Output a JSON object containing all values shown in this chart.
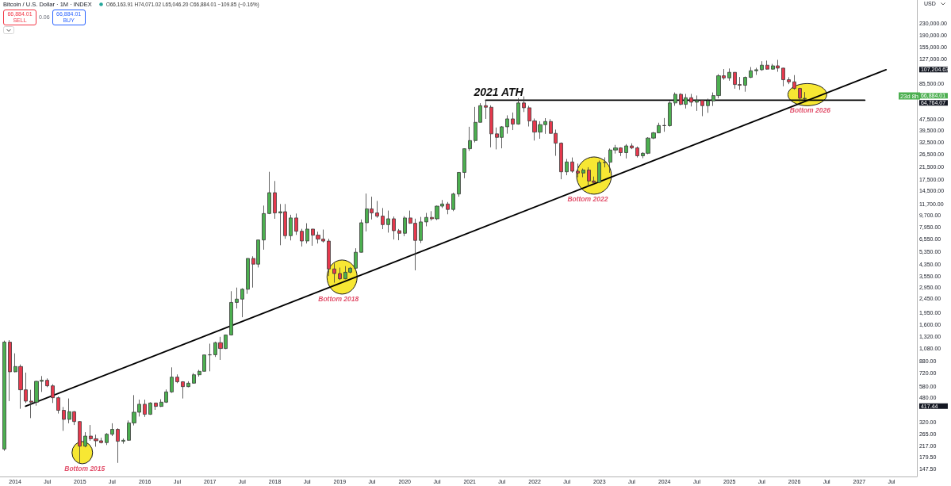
{
  "chart_data": {
    "type": "candlestick",
    "title": "Bitcoin / U.S. Dollar · 1M · INDEX",
    "subtitle": "O66,163.91 H74,071.02 L65,046.20 C66,884.01 −109.85 (−0.16%)",
    "ylabel": "USD",
    "x": [
      "2013-11",
      "2013-12",
      "2014-01",
      "2014-02",
      "2014-03",
      "2014-04",
      "2014-05",
      "2014-06",
      "2014-07",
      "2014-08",
      "2014-09",
      "2014-10",
      "2014-11",
      "2014-12",
      "2015-01",
      "2015-02",
      "2015-03",
      "2015-04",
      "2015-05",
      "2015-06",
      "2015-07",
      "2015-08",
      "2015-09",
      "2015-10",
      "2015-11",
      "2015-12",
      "2016-01",
      "2016-02",
      "2016-03",
      "2016-04",
      "2016-05",
      "2016-06",
      "2016-07",
      "2016-08",
      "2016-09",
      "2016-10",
      "2016-11",
      "2016-12",
      "2017-01",
      "2017-02",
      "2017-03",
      "2017-04",
      "2017-05",
      "2017-06",
      "2017-07",
      "2017-08",
      "2017-09",
      "2017-10",
      "2017-11",
      "2017-12",
      "2018-01",
      "2018-02",
      "2018-03",
      "2018-04",
      "2018-05",
      "2018-06",
      "2018-07",
      "2018-08",
      "2018-09",
      "2018-10",
      "2018-11",
      "2018-12",
      "2019-01",
      "2019-02",
      "2019-03",
      "2019-04",
      "2019-05",
      "2019-06",
      "2019-07",
      "2019-08",
      "2019-09",
      "2019-10",
      "2019-11",
      "2019-12",
      "2020-01",
      "2020-02",
      "2020-03",
      "2020-04",
      "2020-05",
      "2020-06",
      "2020-07",
      "2020-08",
      "2020-09",
      "2020-10",
      "2020-11",
      "2020-12",
      "2021-01",
      "2021-02",
      "2021-03",
      "2021-04",
      "2021-05",
      "2021-06",
      "2021-07",
      "2021-08",
      "2021-09",
      "2021-10",
      "2021-11",
      "2021-12",
      "2022-01",
      "2022-02",
      "2022-03",
      "2022-04",
      "2022-05",
      "2022-06",
      "2022-07",
      "2022-08",
      "2022-09",
      "2022-10",
      "2022-11",
      "2022-12",
      "2023-01",
      "2023-02",
      "2023-03",
      "2023-04",
      "2023-05",
      "2023-06",
      "2023-07",
      "2023-08",
      "2023-09",
      "2023-10",
      "2023-11",
      "2023-12",
      "2024-01",
      "2024-02",
      "2024-03",
      "2024-04",
      "2024-05",
      "2024-06",
      "2024-07",
      "2024-08",
      "2024-09",
      "2024-10",
      "2024-11",
      "2024-12",
      "2025-01",
      "2025-02",
      "2025-03",
      "2025-04",
      "2025-05",
      "2025-06",
      "2025-07",
      "2025-08",
      "2025-09",
      "2025-10",
      "2025-11",
      "2025-12",
      "2026-01",
      "2026-02",
      "2026-03"
    ],
    "ohlc": [
      [
        206,
        1230,
        200,
        1200
      ],
      [
        1200,
        1240,
        454,
        736
      ],
      [
        736,
        998,
        730,
        803
      ],
      [
        803,
        830,
        400,
        547
      ],
      [
        547,
        726,
        440,
        454
      ],
      [
        454,
        547,
        343,
        446
      ],
      [
        446,
        635,
        421,
        629
      ],
      [
        629,
        686,
        528,
        640
      ],
      [
        640,
        660,
        571,
        584
      ],
      [
        584,
        600,
        440,
        480
      ],
      [
        480,
        490,
        370,
        390
      ],
      [
        390,
        412,
        278,
        336
      ],
      [
        336,
        474,
        315,
        381
      ],
      [
        381,
        385,
        306,
        324
      ],
      [
        324,
        326,
        164,
        216
      ],
      [
        216,
        272,
        212,
        255
      ],
      [
        255,
        306,
        236,
        244
      ],
      [
        244,
        261,
        214,
        236
      ],
      [
        236,
        248,
        226,
        229
      ],
      [
        229,
        268,
        220,
        263
      ],
      [
        263,
        315,
        255,
        285
      ],
      [
        285,
        290,
        164,
        234
      ],
      [
        234,
        245,
        225,
        238
      ],
      [
        238,
        330,
        236,
        317
      ],
      [
        317,
        501,
        304,
        378
      ],
      [
        378,
        465,
        352,
        431
      ],
      [
        431,
        465,
        350,
        365
      ],
      [
        365,
        445,
        362,
        440
      ],
      [
        440,
        442,
        393,
        416
      ],
      [
        416,
        468,
        412,
        446
      ],
      [
        446,
        550,
        440,
        528
      ],
      [
        528,
        792,
        520,
        674
      ],
      [
        674,
        705,
        610,
        624
      ],
      [
        624,
        630,
        474,
        576
      ],
      [
        576,
        630,
        570,
        610
      ],
      [
        610,
        720,
        605,
        701
      ],
      [
        701,
        760,
        680,
        742
      ],
      [
        742,
        975,
        740,
        972
      ],
      [
        972,
        1170,
        742,
        975
      ],
      [
        975,
        1210,
        940,
        1190
      ],
      [
        1190,
        1310,
        895,
        1080
      ],
      [
        1080,
        1360,
        1070,
        1350
      ],
      [
        1350,
        2780,
        1340,
        2310
      ],
      [
        2310,
        2950,
        2090,
        2440
      ],
      [
        2440,
        2920,
        1810,
        2870
      ],
      [
        2870,
        4780,
        2660,
        4770
      ],
      [
        4770,
        4940,
        2950,
        4340
      ],
      [
        4340,
        6480,
        4110,
        6470
      ],
      [
        6470,
        11400,
        5510,
        10000
      ],
      [
        10000,
        19900,
        9900,
        14100
      ],
      [
        14100,
        17100,
        9170,
        10100
      ],
      [
        10100,
        11700,
        5930,
        10300
      ],
      [
        10300,
        11700,
        6600,
        6940
      ],
      [
        6940,
        9800,
        6420,
        9300
      ],
      [
        9300,
        10000,
        7030,
        7470
      ],
      [
        7470,
        7770,
        5810,
        6360
      ],
      [
        6360,
        8520,
        6100,
        7740
      ],
      [
        7740,
        7760,
        5880,
        7000
      ],
      [
        7000,
        7410,
        6100,
        6560
      ],
      [
        6560,
        7680,
        6200,
        6350
      ],
      [
        6350,
        6600,
        3570,
        4010
      ],
      [
        4010,
        4400,
        3200,
        3720
      ],
      [
        3720,
        4100,
        3340,
        3410
      ],
      [
        3410,
        4200,
        3380,
        3800
      ],
      [
        3800,
        4140,
        3730,
        4060
      ],
      [
        4060,
        5640,
        4030,
        5280
      ],
      [
        5280,
        9070,
        5260,
        8590
      ],
      [
        8590,
        13900,
        7450,
        10800
      ],
      [
        10800,
        13200,
        9070,
        10100
      ],
      [
        10100,
        12300,
        9320,
        9580
      ],
      [
        9580,
        10950,
        7730,
        8330
      ],
      [
        8330,
        10500,
        7300,
        9170
      ],
      [
        9170,
        9520,
        6520,
        7540
      ],
      [
        7540,
        7750,
        6440,
        7220
      ],
      [
        7220,
        9580,
        6880,
        9300
      ],
      [
        9300,
        10500,
        8450,
        8520
      ],
      [
        8520,
        9190,
        3920,
        6420
      ],
      [
        6420,
        9460,
        6150,
        8710
      ],
      [
        8710,
        10100,
        8100,
        9380
      ],
      [
        9380,
        10400,
        8900,
        9170
      ],
      [
        9170,
        11400,
        8980,
        11300
      ],
      [
        11300,
        12500,
        10950,
        11700
      ],
      [
        11700,
        12100,
        9880,
        10700
      ],
      [
        10700,
        14100,
        10400,
        13800
      ],
      [
        13800,
        19800,
        13200,
        19700
      ],
      [
        19700,
        29300,
        17900,
        29100
      ],
      [
        29100,
        41800,
        28100,
        33300
      ],
      [
        33300,
        58000,
        32300,
        45000
      ],
      [
        45000,
        61700,
        44950,
        59200
      ],
      [
        59200,
        64700,
        47600,
        57700
      ],
      [
        57700,
        59500,
        29800,
        37200
      ],
      [
        37200,
        41300,
        28800,
        35100
      ],
      [
        35100,
        42300,
        29300,
        41800
      ],
      [
        41800,
        50500,
        37300,
        47600
      ],
      [
        47600,
        52900,
        39600,
        43700
      ],
      [
        43700,
        67000,
        43300,
        61900
      ],
      [
        61900,
        69000,
        53300,
        57200
      ],
      [
        57200,
        59100,
        42000,
        46000
      ],
      [
        46000,
        47900,
        33300,
        38300
      ],
      [
        38300,
        45800,
        34300,
        43300
      ],
      [
        43300,
        48200,
        37200,
        45600
      ],
      [
        45600,
        47400,
        37300,
        37500
      ],
      [
        37500,
        39900,
        25900,
        31900
      ],
      [
        31900,
        32300,
        17600,
        19900
      ],
      [
        19900,
        24600,
        18800,
        23400
      ],
      [
        23400,
        25200,
        19600,
        20100
      ],
      [
        20100,
        22800,
        18200,
        19500
      ],
      [
        19500,
        21000,
        18200,
        20500
      ],
      [
        20500,
        21450,
        15500,
        17100
      ],
      [
        17100,
        18400,
        16300,
        16700
      ],
      [
        16700,
        23950,
        16500,
        23200
      ],
      [
        23200,
        25250,
        21400,
        23300
      ],
      [
        23300,
        29200,
        19600,
        28500
      ],
      [
        28500,
        31000,
        26900,
        29500
      ],
      [
        29500,
        29800,
        25800,
        27300
      ],
      [
        27300,
        31400,
        24800,
        30500
      ],
      [
        30500,
        31800,
        28900,
        29500
      ],
      [
        29500,
        30200,
        25200,
        25900
      ],
      [
        25900,
        27500,
        24900,
        27000
      ],
      [
        27000,
        35200,
        26600,
        34700
      ],
      [
        34700,
        38400,
        34100,
        37800
      ],
      [
        37800,
        44700,
        37600,
        42700
      ],
      [
        42700,
        48300,
        38500,
        42600
      ],
      [
        42600,
        63900,
        41900,
        61900
      ],
      [
        61900,
        73600,
        59100,
        71400
      ],
      [
        71400,
        72800,
        59600,
        60500
      ],
      [
        60500,
        71900,
        56500,
        67500
      ],
      [
        67500,
        71900,
        58400,
        62700
      ],
      [
        62700,
        70000,
        54300,
        64600
      ],
      [
        64600,
        65100,
        49800,
        59200
      ],
      [
        59200,
        66500,
        52600,
        64100
      ],
      [
        64100,
        73600,
        58900,
        69900
      ],
      [
        69900,
        99600,
        66800,
        96900
      ],
      [
        96900,
        108300,
        90800,
        93600
      ],
      [
        93600,
        109300,
        89300,
        102600
      ],
      [
        102600,
        102700,
        78300,
        83900
      ],
      [
        83900,
        95000,
        76900,
        82900
      ],
      [
        82900,
        95700,
        74500,
        94400
      ],
      [
        94400,
        111900,
        93400,
        105300
      ],
      [
        105300,
        110600,
        98300,
        107100
      ],
      [
        107100,
        123200,
        105300,
        115400
      ],
      [
        115400,
        124500,
        107300,
        108100
      ],
      [
        108100,
        117900,
        107300,
        114200
      ],
      [
        114200,
        126000,
        103500,
        110000
      ],
      [
        110000,
        110600,
        81400,
        90800
      ],
      [
        90800,
        94600,
        84400,
        87700
      ],
      [
        87700,
        98000,
        77000,
        78600
      ],
      [
        78600,
        79500,
        63000,
        67000
      ],
      [
        66163.91,
        74071.02,
        65046.2,
        66884.01
      ]
    ],
    "colors": [
      "#4caf50",
      "#e5394d",
      "#4caf50",
      "#e5394d",
      "#e5394d",
      "#e5394d",
      "#4caf50",
      "#4caf50",
      "#e5394d",
      "#e5394d",
      "#e5394d",
      "#e5394d",
      "#4caf50",
      "#e5394d",
      "#e5394d",
      "#4caf50",
      "#e5394d",
      "#e5394d",
      "#e5394d",
      "#4caf50",
      "#4caf50",
      "#e5394d",
      "#4caf50",
      "#4caf50",
      "#4caf50",
      "#4caf50",
      "#e5394d",
      "#4caf50",
      "#e5394d",
      "#4caf50",
      "#4caf50",
      "#4caf50",
      "#e5394d",
      "#e5394d",
      "#4caf50",
      "#4caf50",
      "#4caf50",
      "#4caf50",
      "#4caf50",
      "#4caf50",
      "#e5394d",
      "#4caf50",
      "#4caf50",
      "#4caf50",
      "#4caf50",
      "#4caf50",
      "#e5394d",
      "#4caf50",
      "#4caf50",
      "#4caf50",
      "#e5394d",
      "#4caf50",
      "#e5394d",
      "#4caf50",
      "#e5394d",
      "#e5394d",
      "#4caf50",
      "#e5394d",
      "#e5394d",
      "#e5394d",
      "#e5394d",
      "#e5394d",
      "#e5394d",
      "#4caf50",
      "#4caf50",
      "#4caf50",
      "#4caf50",
      "#4caf50",
      "#e5394d",
      "#e5394d",
      "#e5394d",
      "#4caf50",
      "#e5394d",
      "#e5394d",
      "#4caf50",
      "#e5394d",
      "#e5394d",
      "#4caf50",
      "#4caf50",
      "#e5394d",
      "#4caf50",
      "#4caf50",
      "#e5394d",
      "#4caf50",
      "#4caf50",
      "#4caf50",
      "#4caf50",
      "#4caf50",
      "#4caf50",
      "#e5394d",
      "#e5394d",
      "#e5394d",
      "#4caf50",
      "#4caf50",
      "#e5394d",
      "#4caf50",
      "#e5394d",
      "#e5394d",
      "#e5394d",
      "#4caf50",
      "#4caf50",
      "#e5394d",
      "#e5394d",
      "#e5394d",
      "#4caf50",
      "#e5394d",
      "#e5394d",
      "#4caf50",
      "#e5394d",
      "#e5394d",
      "#4caf50",
      "#4caf50",
      "#4caf50",
      "#4caf50",
      "#e5394d",
      "#4caf50",
      "#e5394d",
      "#e5394d",
      "#4caf50",
      "#4caf50",
      "#4caf50",
      "#4caf50",
      "#e5394d",
      "#4caf50",
      "#4caf50",
      "#e5394d",
      "#4caf50",
      "#e5394d",
      "#4caf50",
      "#e5394d",
      "#4caf50",
      "#4caf50",
      "#4caf50",
      "#e5394d",
      "#4caf50",
      "#e5394d",
      "#e5394d",
      "#4caf50",
      "#4caf50",
      "#4caf50",
      "#4caf50",
      "#e5394d",
      "#4caf50",
      "#e5394d",
      "#e5394d",
      "#e5394d",
      "#e5394d",
      "#e5394d",
      "#4caf50"
    ],
    "series": [
      {
        "type": "line",
        "x": [
          "2014-03",
          "2027-06"
        ],
        "values": [
          417.44,
          107204.63
        ],
        "color": "#000000"
      },
      {
        "type": "line",
        "x": [
          "2021-04",
          "2027-02"
        ],
        "values": [
          64764.07,
          64764.07
        ],
        "color": "#000000"
      }
    ],
    "log": true,
    "ylim": [
      131,
      338000
    ],
    "yticks": [
      {
        "value": 147.5,
        "label": "147.50"
      },
      {
        "value": 179.5,
        "label": "179.50"
      },
      {
        "value": 217,
        "label": "217.00"
      },
      {
        "value": 265,
        "label": "265.00"
      },
      {
        "value": 320,
        "label": "320.00"
      },
      {
        "value": 417.44,
        "label": "417.44"
      },
      {
        "value": 480,
        "label": "480.00"
      },
      {
        "value": 580,
        "label": "580.00"
      },
      {
        "value": 720,
        "label": "720.00"
      },
      {
        "value": 880,
        "label": "880.00"
      },
      {
        "value": 1080,
        "label": "1,080.00"
      },
      {
        "value": 1320,
        "label": "1,320.00"
      },
      {
        "value": 1600,
        "label": "1,600.00"
      },
      {
        "value": 1950,
        "label": "1,950.00"
      },
      {
        "value": 2450,
        "label": "2,450.00"
      },
      {
        "value": 2950,
        "label": "2,950.00"
      },
      {
        "value": 3550,
        "label": "3,550.00"
      },
      {
        "value": 4350,
        "label": "4,350.00"
      },
      {
        "value": 5350,
        "label": "5,350.00"
      },
      {
        "value": 6550,
        "label": "6,550.00"
      },
      {
        "value": 7950,
        "label": "7,950.00"
      },
      {
        "value": 9700,
        "label": "9,700.00"
      },
      {
        "value": 11700,
        "label": "11,700.00"
      },
      {
        "value": 14500,
        "label": "14,500.00"
      },
      {
        "value": 17500,
        "label": "17,500.00"
      },
      {
        "value": 21500,
        "label": "21,500.00"
      },
      {
        "value": 26500,
        "label": "26,500.00"
      },
      {
        "value": 32500,
        "label": "32,500.00"
      },
      {
        "value": 39500,
        "label": "39,500.00"
      },
      {
        "value": 47500,
        "label": "47,500.00"
      },
      {
        "value": 64764.07,
        "label": "64,764.07"
      },
      {
        "value": 66884.01,
        "label": "66,884.01"
      },
      {
        "value": 85500,
        "label": "85,500.00"
      },
      {
        "value": 107204.63,
        "label": "107,204.63"
      },
      {
        "value": 127000,
        "label": "127,000.00"
      },
      {
        "value": 155000,
        "label": "155,000.00"
      },
      {
        "value": 190000,
        "label": "190,000.00"
      },
      {
        "value": 230000,
        "label": "230,000.00"
      }
    ],
    "xlim": [
      "2013-10-08",
      "2027-11-21"
    ],
    "xticks": [
      "2014",
      {
        "value": "2014-07",
        "label": "Jul"
      },
      "2015",
      {
        "value": "2015-07",
        "label": "Jul"
      },
      "2016",
      {
        "value": "2016-07",
        "label": "Jul"
      },
      "2017",
      {
        "value": "2017-07",
        "label": "Jul"
      },
      "2018",
      {
        "value": "2018-07",
        "label": "Jul"
      },
      "2019",
      {
        "value": "2019-07",
        "label": "Jul"
      },
      "2020",
      {
        "value": "2020-07",
        "label": "Jul"
      },
      "2021",
      {
        "value": "2021-07",
        "label": "Jul"
      },
      "2022",
      {
        "value": "2022-07",
        "label": "Jul"
      },
      "2023",
      {
        "value": "2023-07",
        "label": "Jul"
      },
      "2024",
      {
        "value": "2024-07",
        "label": "Jul"
      },
      "2025",
      {
        "value": "2025-07",
        "label": "Jul"
      },
      "2026",
      {
        "value": "2026-07",
        "label": "Jul"
      },
      "2027",
      {
        "value": "2027-07",
        "label": "Jul"
      }
    ],
    "grid": false,
    "marker": "none",
    "annotations": [
      {
        "text": "2021 ATH",
        "x": "2021-06-12",
        "y": 64764.07
      },
      {
        "text": "Bottom 2015",
        "x": "2015-01-14",
        "y": 194
      },
      {
        "text": "Bottom 2018",
        "x": "2019-01-14",
        "y": 3510
      },
      {
        "text": "Bottom 2022",
        "x": "2022-12",
        "y": 18700
      },
      {
        "text": "Bottom 2026",
        "x": "2026-03-15",
        "y": 71000
      },
      "66,884.01\nSELL",
      "0.06",
      "66,884.01\nBUY",
      "23d 8h"
    ]
  }
}
